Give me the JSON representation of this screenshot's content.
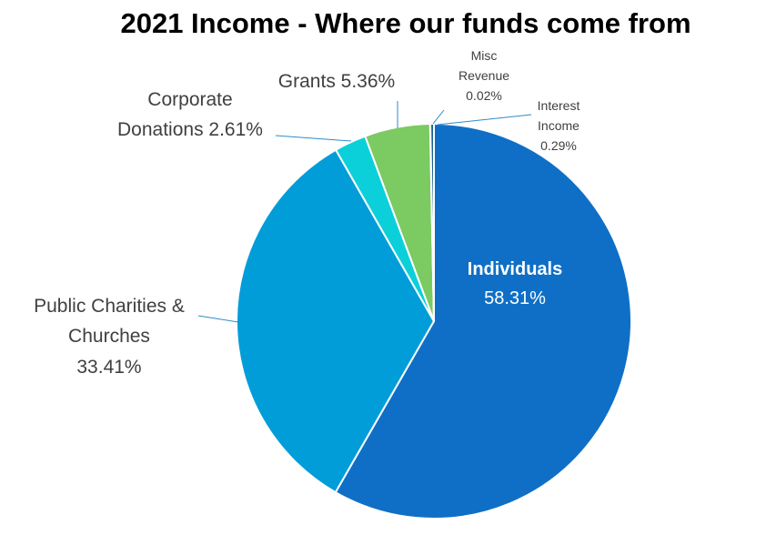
{
  "chart_data": {
    "type": "pie",
    "title": "2021 Income - Where our funds come from",
    "slices": [
      {
        "label": "Individuals",
        "value": 58.31,
        "value_label": "58.31%",
        "color": "#0f6fc6"
      },
      {
        "label": "Public Charities & Churches",
        "value": 33.41,
        "value_label": "33.41%",
        "color": "#009dd9"
      },
      {
        "label": "Corporate Donations",
        "value": 2.61,
        "value_label": "2.61%",
        "color": "#0bd0d9"
      },
      {
        "label": "Grants",
        "value": 5.36,
        "value_label": "5.36%",
        "color": "#7cca62"
      },
      {
        "label": "Misc Revenue",
        "value": 0.02,
        "value_label": "0.02%",
        "color": "#10cf9b"
      },
      {
        "label": "Interest Income",
        "value": 0.29,
        "value_label": "0.29%",
        "color": "#1c6194"
      }
    ],
    "legend": "none"
  },
  "labels": {
    "individuals_name": "Individuals",
    "individuals_val": "58.31%",
    "public_line1": "Public Charities &",
    "public_line2": "Churches",
    "public_val": "33.41%",
    "corporate_line1": "Corporate",
    "corporate_line2": "Donations 2.61%",
    "grants": "Grants 5.36%",
    "misc_line1": "Misc",
    "misc_line2": "Revenue",
    "misc_line3": "0.02%",
    "interest_line1": "Interest",
    "interest_line2": "Income",
    "interest_line3": "0.29%"
  }
}
